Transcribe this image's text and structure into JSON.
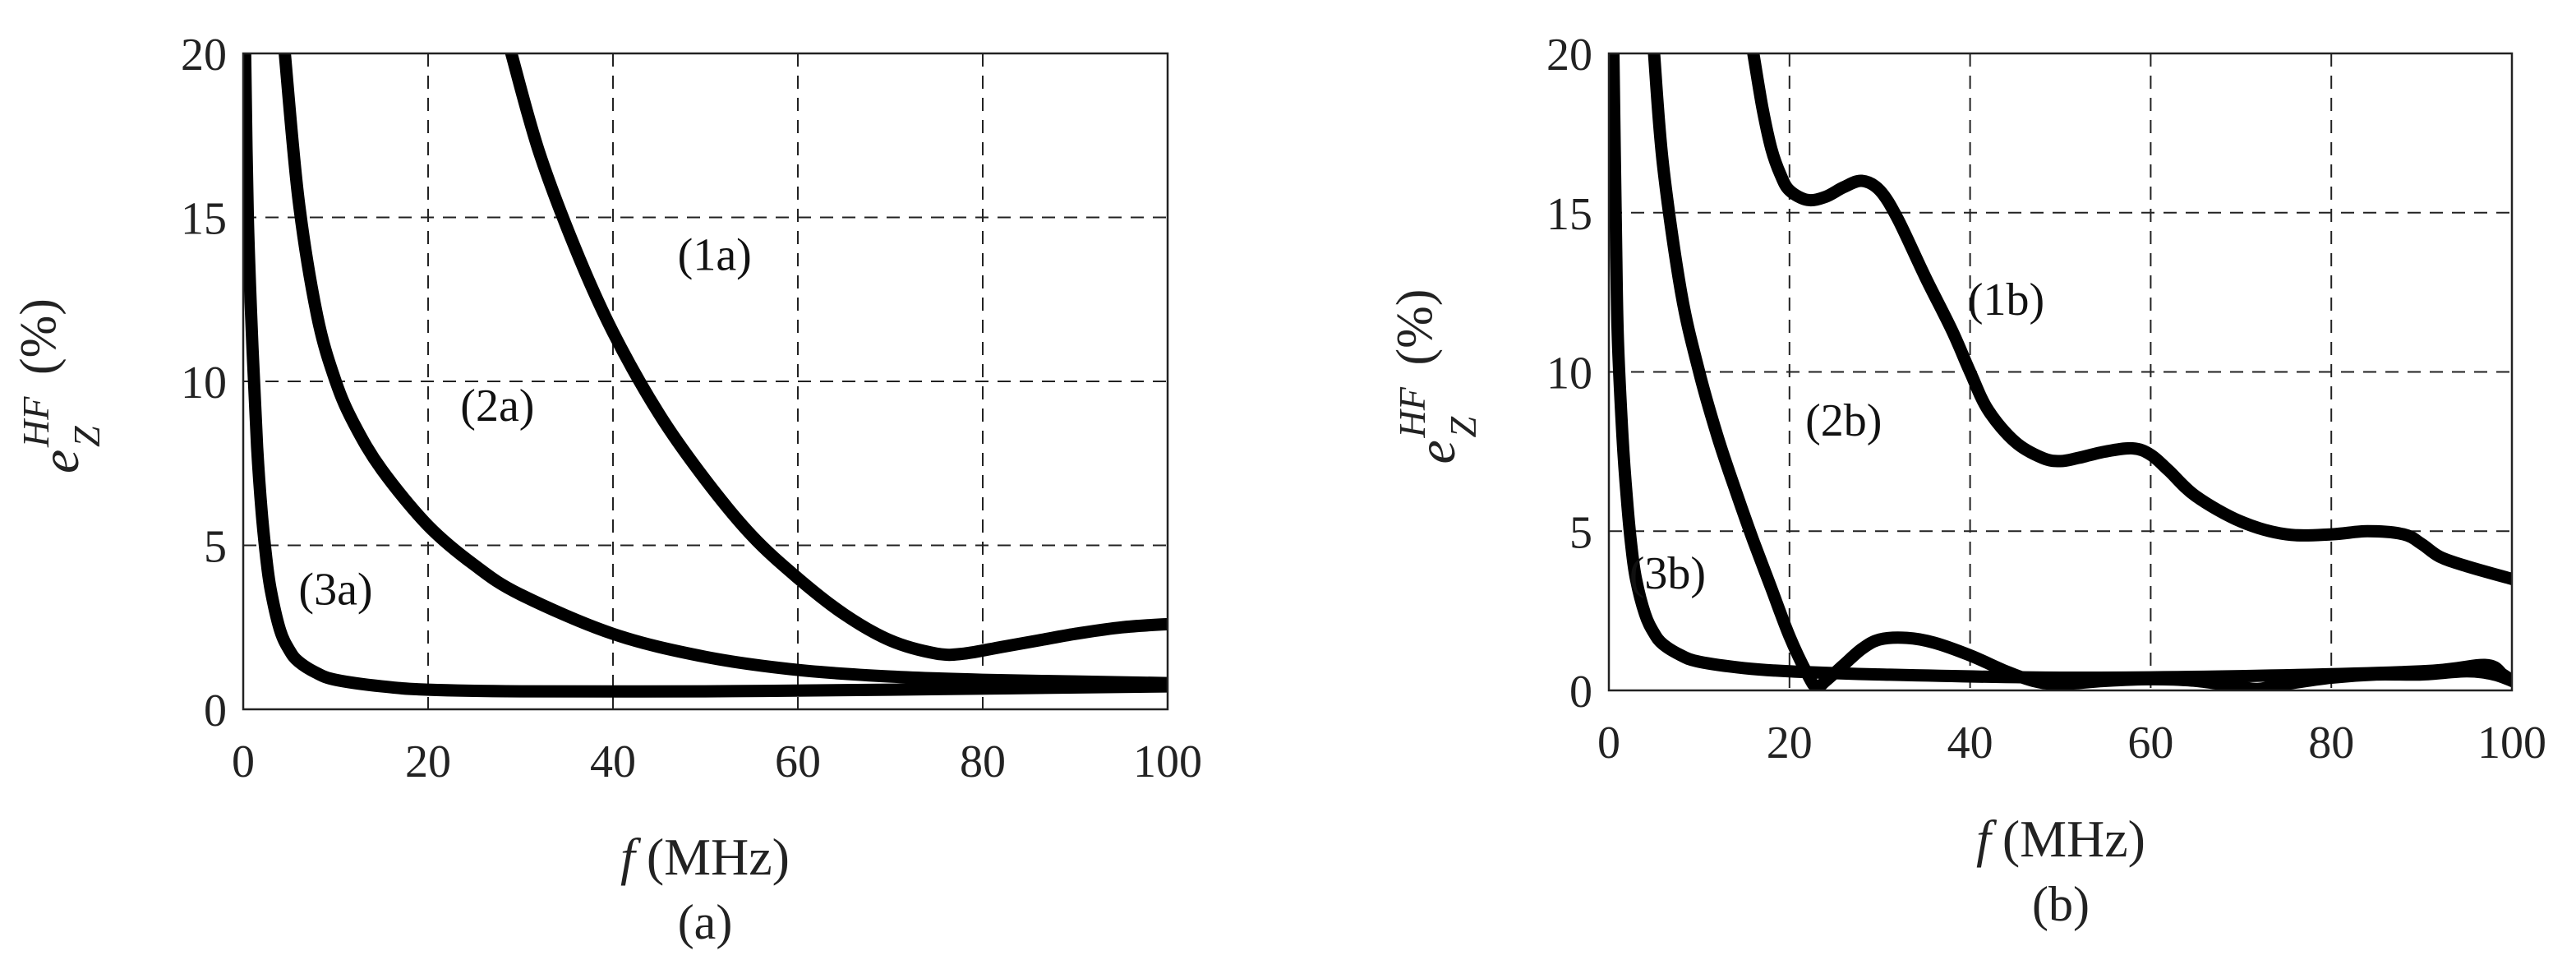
{
  "chart_data": [
    {
      "type": "line",
      "panel_label": "(a)",
      "xlabel": {
        "var": "f",
        "unit": "(MHz)"
      },
      "ylabel": {
        "base": "e",
        "sup": "HF",
        "sub": "Z",
        "unit": "(%)"
      },
      "xlim": [
        0,
        100
      ],
      "ylim": [
        0,
        20
      ],
      "xticks": [
        "0",
        "20",
        "40",
        "60",
        "80",
        "100"
      ],
      "yticks": [
        "0",
        "5",
        "10",
        "15",
        "20"
      ],
      "grid": "dashed",
      "series": [
        {
          "name": "(1a)",
          "label_at": [
            51,
            13.4
          ],
          "x": [
            29,
            32,
            36,
            40,
            45,
            50,
            55,
            60,
            65,
            70,
            75,
            78,
            82,
            86,
            90,
            95,
            100
          ],
          "y": [
            20,
            17,
            14,
            11.5,
            9,
            7,
            5.3,
            4,
            2.9,
            2.1,
            1.7,
            1.7,
            1.9,
            2.1,
            2.3,
            2.5,
            2.6
          ]
        },
        {
          "name": "(2a)",
          "label_at": [
            27.5,
            8.8
          ],
          "x": [
            4.5,
            6,
            8,
            10,
            12,
            15,
            20,
            25,
            30,
            40,
            50,
            60,
            70,
            80,
            90,
            100
          ],
          "y": [
            20,
            15.5,
            12,
            10,
            8.7,
            7.3,
            5.6,
            4.4,
            3.5,
            2.3,
            1.6,
            1.2,
            1.0,
            0.9,
            0.85,
            0.8
          ]
        },
        {
          "name": "(3a)",
          "label_at": [
            10,
            3.2
          ],
          "x": [
            0.2,
            0.5,
            1,
            1.5,
            2,
            2.5,
            3,
            4,
            5,
            6,
            8,
            10,
            15,
            20,
            30,
            50,
            70,
            100
          ],
          "y": [
            20,
            15,
            11,
            8,
            6,
            4.6,
            3.6,
            2.4,
            1.8,
            1.45,
            1.1,
            0.9,
            0.7,
            0.6,
            0.55,
            0.55,
            0.6,
            0.7
          ]
        }
      ]
    },
    {
      "type": "line",
      "panel_label": "(b)",
      "xlabel": {
        "var": "f",
        "unit": "(MHz)"
      },
      "ylabel": {
        "base": "e",
        "sup": "HF",
        "sub": "Z",
        "unit": "(%)"
      },
      "xlim": [
        0,
        100
      ],
      "ylim": [
        0,
        20
      ],
      "xticks": [
        "0",
        "20",
        "40",
        "60",
        "80",
        "100"
      ],
      "yticks": [
        "0",
        "5",
        "10",
        "15",
        "20"
      ],
      "grid": "dashed",
      "series": [
        {
          "name": "(1b)",
          "label_at": [
            44,
            11.8
          ],
          "x": [
            16,
            17,
            18,
            19,
            20,
            22,
            24,
            26,
            28,
            30,
            32,
            35,
            38,
            40,
            42,
            45,
            48,
            50,
            52,
            55,
            58,
            60,
            62,
            65,
            70,
            75,
            80,
            84,
            88,
            90,
            92,
            95,
            100
          ],
          "y": [
            20,
            18.3,
            17,
            16.2,
            15.7,
            15.4,
            15.5,
            15.8,
            16.0,
            15.7,
            14.8,
            13,
            11.3,
            10,
            8.8,
            7.8,
            7.3,
            7.2,
            7.3,
            7.5,
            7.6,
            7.4,
            6.9,
            6.1,
            5.3,
            4.9,
            4.9,
            5.0,
            4.9,
            4.6,
            4.2,
            3.9,
            3.5
          ]
        },
        {
          "name": "(2b)",
          "label_at": [
            26,
            8.0
          ],
          "x": [
            5,
            6,
            8,
            10,
            12,
            14,
            16,
            18,
            20,
            22,
            23,
            24,
            26,
            28,
            30,
            33,
            36,
            40,
            44,
            47,
            50,
            55,
            60,
            65,
            70,
            72,
            75,
            80,
            85,
            90,
            95,
            98,
            100
          ],
          "y": [
            20,
            16.5,
            12.5,
            10,
            8,
            6.3,
            4.7,
            3.2,
            1.7,
            0.5,
            0.1,
            0.3,
            0.8,
            1.3,
            1.6,
            1.65,
            1.5,
            1.1,
            0.6,
            0.3,
            0.2,
            0.3,
            0.35,
            0.3,
            0.1,
            0.05,
            0.2,
            0.4,
            0.5,
            0.5,
            0.6,
            0.5,
            0.3
          ]
        },
        {
          "name": "(3b)",
          "label_at": [
            6.5,
            3.2
          ],
          "x": [
            0.5,
            0.8,
            1,
            1.5,
            2,
            2.5,
            3,
            4,
            5,
            6,
            8,
            10,
            15,
            20,
            30,
            50,
            70,
            90,
            97,
            99,
            100
          ],
          "y": [
            20,
            14,
            11,
            8,
            6,
            4.5,
            3.5,
            2.4,
            1.8,
            1.45,
            1.1,
            0.9,
            0.7,
            0.6,
            0.5,
            0.4,
            0.45,
            0.6,
            0.8,
            0.5,
            0.3
          ]
        }
      ]
    }
  ]
}
